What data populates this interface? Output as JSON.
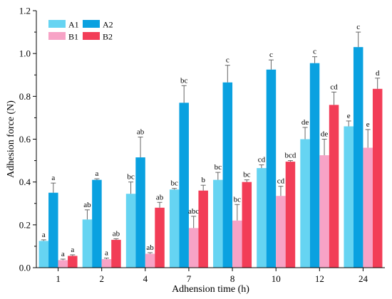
{
  "chart_data": {
    "type": "bar",
    "title": "",
    "xlabel": "Adhension time (h)",
    "ylabel": "Adhesion force (N)",
    "ylim": [
      0,
      1.2
    ],
    "yticks": [
      "0.0",
      "0.2",
      "0.4",
      "0.6",
      "0.8",
      "1.0",
      "1.2"
    ],
    "categories": [
      "1",
      "2",
      "4",
      "7",
      "8",
      "10",
      "12",
      "24"
    ],
    "legend_position": "top-left",
    "series": [
      {
        "name": "A1",
        "color": "#66d4f2",
        "values": [
          0.125,
          0.225,
          0.345,
          0.365,
          0.41,
          0.465,
          0.6,
          0.66
        ],
        "errors": [
          0.005,
          0.045,
          0.055,
          0.005,
          0.035,
          0.015,
          0.055,
          0.025
        ],
        "labels": [
          "a",
          "ab",
          "bc",
          "bc",
          "bc",
          "cd",
          "de",
          "e"
        ]
      },
      {
        "name": "A2",
        "color": "#0aa1e0",
        "values": [
          0.35,
          0.41,
          0.515,
          0.77,
          0.865,
          0.925,
          0.955,
          1.03
        ],
        "errors": [
          0.045,
          0.005,
          0.095,
          0.08,
          0.08,
          0.045,
          0.03,
          0.07
        ],
        "labels": [
          "a",
          "a",
          "ab",
          "bc",
          "c",
          "c",
          "c",
          "c"
        ]
      },
      {
        "name": "B1",
        "color": "#f7a3c6",
        "values": [
          0.035,
          0.04,
          0.065,
          0.185,
          0.22,
          0.335,
          0.525,
          0.56
        ],
        "errors": [
          0.005,
          0.005,
          0.005,
          0.055,
          0.075,
          0.045,
          0.075,
          0.085
        ],
        "labels": [
          "a",
          "a",
          "ab",
          "abc",
          "bc",
          "cd",
          "de",
          "e"
        ]
      },
      {
        "name": "B2",
        "color": "#f23d57",
        "values": [
          0.055,
          0.13,
          0.28,
          0.36,
          0.4,
          0.495,
          0.76,
          0.835
        ],
        "errors": [
          0.005,
          0.005,
          0.025,
          0.025,
          0.01,
          0.005,
          0.06,
          0.05
        ],
        "labels": [
          "a",
          "ab",
          "ab",
          "b",
          "bc",
          "bcd",
          "cd",
          "d"
        ]
      }
    ]
  }
}
